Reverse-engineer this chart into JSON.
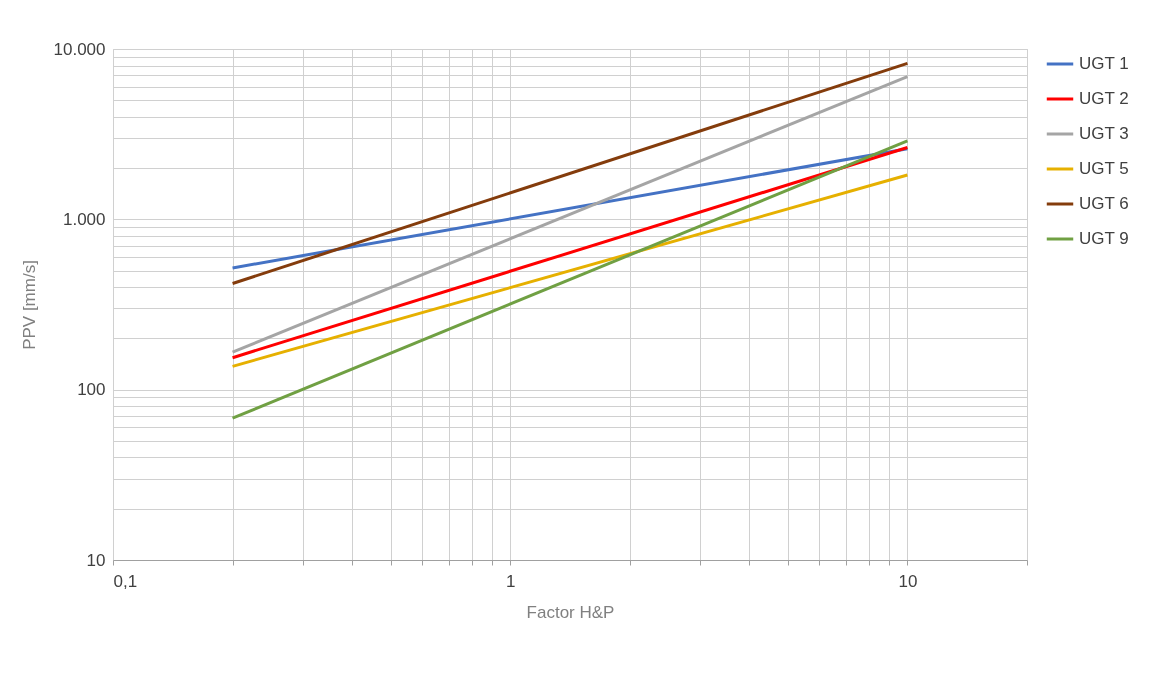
{
  "chart_data": {
    "type": "line",
    "xlabel": "Factor H&P",
    "ylabel": "PPV [mm/s]",
    "log": "xy",
    "grid": true,
    "legend": "right",
    "marker": "none",
    "line_style": "solid",
    "xlim": [
      0.1,
      20
    ],
    "ylim": [
      10,
      10000
    ],
    "xticks": [
      {
        "value": 0.1,
        "label": "0,1"
      },
      {
        "value": 0.2,
        "label": null
      },
      {
        "value": 0.3,
        "label": null
      },
      {
        "value": 0.4,
        "label": null
      },
      {
        "value": 0.5,
        "label": null
      },
      {
        "value": 0.6,
        "label": null
      },
      {
        "value": 0.7,
        "label": null
      },
      {
        "value": 0.8,
        "label": null
      },
      {
        "value": 0.9,
        "label": null
      },
      1,
      {
        "value": 2,
        "label": null
      },
      {
        "value": 3,
        "label": null
      },
      {
        "value": 4,
        "label": null
      },
      {
        "value": 5,
        "label": null
      },
      {
        "value": 6,
        "label": null
      },
      {
        "value": 7,
        "label": null
      },
      {
        "value": 8,
        "label": null
      },
      {
        "value": 9,
        "label": null
      },
      10,
      {
        "value": 20,
        "label": null
      }
    ],
    "yticks": [
      10,
      {
        "value": 20,
        "label": null
      },
      {
        "value": 30,
        "label": null
      },
      {
        "value": 40,
        "label": null
      },
      {
        "value": 50,
        "label": null
      },
      {
        "value": 60,
        "label": null
      },
      {
        "value": 70,
        "label": null
      },
      {
        "value": 80,
        "label": null
      },
      {
        "value": 90,
        "label": null
      },
      100,
      {
        "value": 200,
        "label": null
      },
      {
        "value": 300,
        "label": null
      },
      {
        "value": 400,
        "label": null
      },
      {
        "value": 500,
        "label": null
      },
      {
        "value": 600,
        "label": null
      },
      {
        "value": 700,
        "label": null
      },
      {
        "value": 800,
        "label": null
      },
      {
        "value": 900,
        "label": null
      },
      {
        "value": 1000,
        "label": "1.000"
      },
      {
        "value": 2000,
        "label": null
      },
      {
        "value": 3000,
        "label": null
      },
      {
        "value": 4000,
        "label": null
      },
      {
        "value": 5000,
        "label": null
      },
      {
        "value": 6000,
        "label": null
      },
      {
        "value": 7000,
        "label": null
      },
      {
        "value": 8000,
        "label": null
      },
      {
        "value": 9000,
        "label": null
      },
      {
        "value": 10000,
        "label": "10.000"
      }
    ],
    "x": [
      0.2,
      10
    ],
    "series": [
      {
        "name": "UGT 1",
        "color": "#4472c4",
        "values": [
          518,
          2600
        ]
      },
      {
        "name": "UGT 2",
        "color": "#ff0000",
        "values": [
          154,
          2640
        ]
      },
      {
        "name": "UGT 3",
        "color": "#a5a5a5",
        "values": [
          166,
          6890
        ]
      },
      {
        "name": "UGT 5",
        "color": "#e6b000",
        "values": [
          137,
          1820
        ]
      },
      {
        "name": "UGT 6",
        "color": "#843c0c",
        "values": [
          420,
          8240
        ]
      },
      {
        "name": "UGT 9",
        "color": "#70a043",
        "values": [
          68,
          2890
        ]
      }
    ]
  }
}
